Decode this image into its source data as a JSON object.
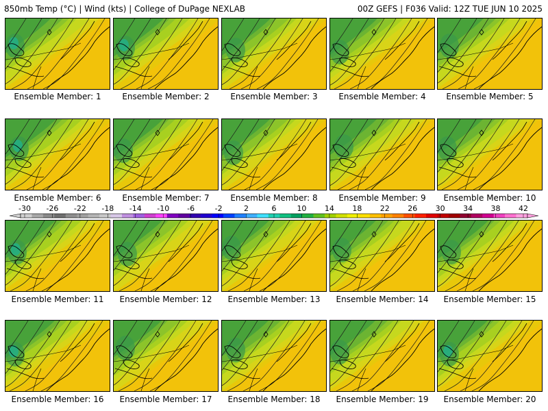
{
  "header": {
    "left": "850mb Temp (°C) | Wind (kts) | College of DuPage NEXLAB",
    "right": "00Z GEFS | F036 Valid: 12Z TUE JUN 10 2025"
  },
  "members": [
    {
      "label": "Ensemble Member: 1"
    },
    {
      "label": "Ensemble Member: 2"
    },
    {
      "label": "Ensemble Member: 3"
    },
    {
      "label": "Ensemble Member: 4"
    },
    {
      "label": "Ensemble Member: 5"
    },
    {
      "label": "Ensemble Member: 6"
    },
    {
      "label": "Ensemble Member: 7"
    },
    {
      "label": "Ensemble Member: 8"
    },
    {
      "label": "Ensemble Member: 9"
    },
    {
      "label": "Ensemble Member: 10"
    },
    {
      "label": "Ensemble Member: 11"
    },
    {
      "label": "Ensemble Member: 12"
    },
    {
      "label": "Ensemble Member: 13"
    },
    {
      "label": "Ensemble Member: 14"
    },
    {
      "label": "Ensemble Member: 15"
    },
    {
      "label": "Ensemble Member: 16"
    },
    {
      "label": "Ensemble Member: 17"
    },
    {
      "label": "Ensemble Member: 18"
    },
    {
      "label": "Ensemble Member: 19"
    },
    {
      "label": "Ensemble Member: 20"
    }
  ],
  "colorbar": {
    "tick_labels": [
      "-30",
      "-26",
      "-22",
      "-18",
      "-14",
      "-10",
      "-6",
      "-2",
      "2",
      "6",
      "10",
      "14",
      "18",
      "22",
      "26",
      "30",
      "34",
      "38",
      "42"
    ],
    "colors": [
      "#cfcfcf",
      "#a8a8a8",
      "#8a8a8a",
      "#6e6e6e",
      "#8e8e8e",
      "#a0a0a0",
      "#b4b4b4",
      "#c8c8c8",
      "#d8c8e8",
      "#c090e0",
      "#a060e0",
      "#d040d0",
      "#ff40ff",
      "#8000c0",
      "#6000a0",
      "#3000b0",
      "#2000d0",
      "#0000ff",
      "#0040ff",
      "#2080ff",
      "#40b0ff",
      "#40e0ff",
      "#20d0b0",
      "#10c080",
      "#00a060",
      "#20b040",
      "#60c020",
      "#a0d000",
      "#d0e000",
      "#f0f000",
      "#ffe000",
      "#ffc000",
      "#ffa000",
      "#ff8000",
      "#ff5000",
      "#ff2000",
      "#e00000",
      "#c00000",
      "#a00000",
      "#900030",
      "#b00060",
      "#d00090",
      "#f040c0",
      "#ff70d0",
      "#ffa0e0"
    ]
  }
}
